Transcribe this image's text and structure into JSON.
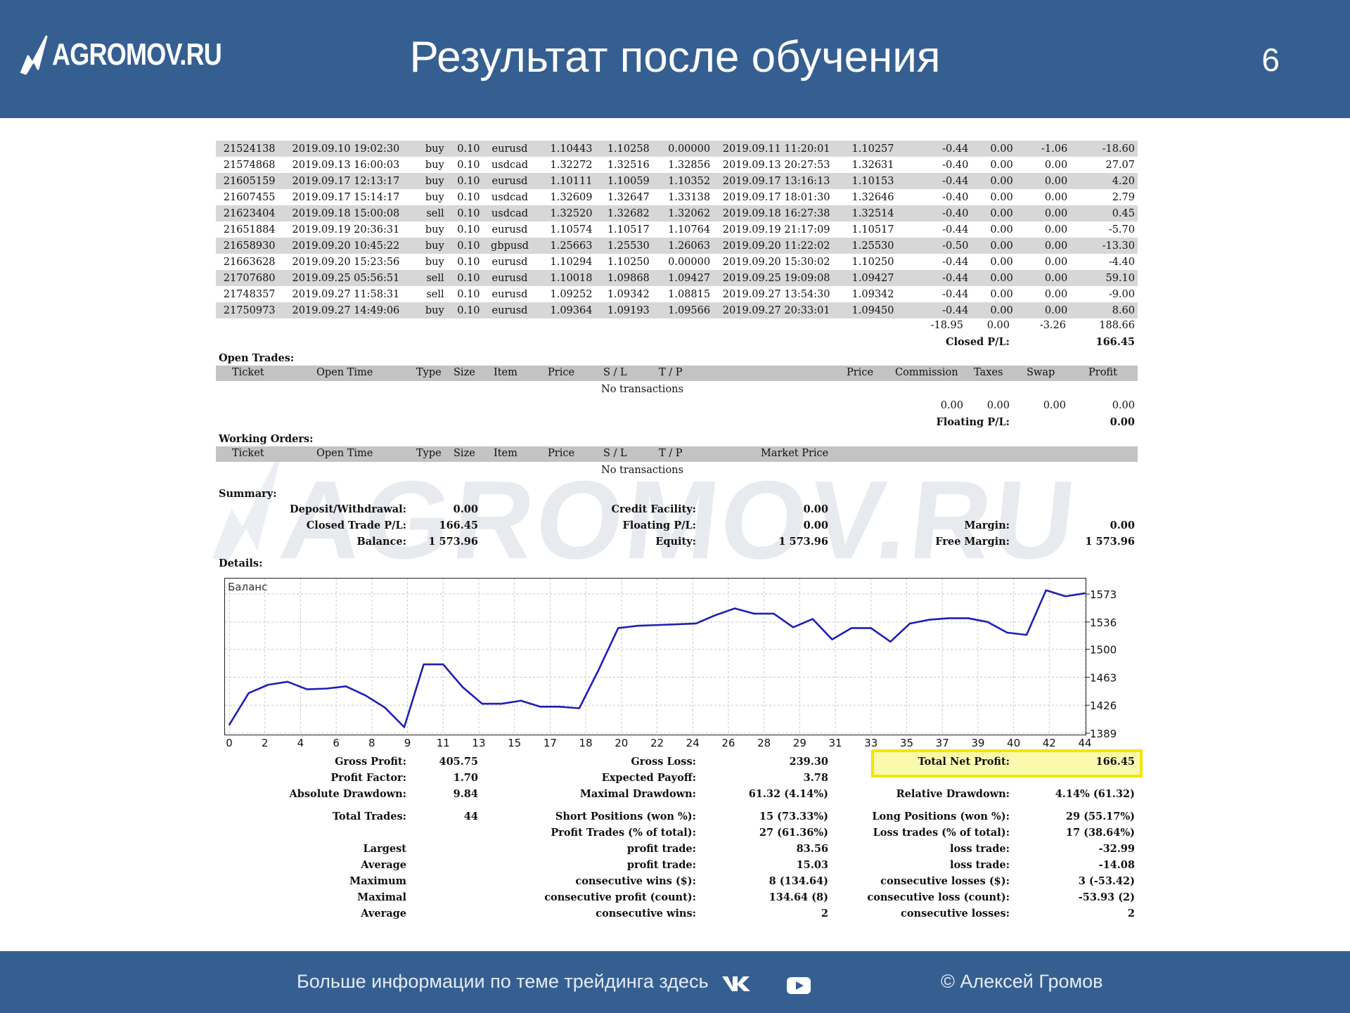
{
  "header": {
    "logo_text": "AGROMOV.RU",
    "title": "Результат после обучения",
    "page_number": "6"
  },
  "trades": [
    [
      "21524138",
      "2019.09.10 19:02:30",
      "buy",
      "0.10",
      "eurusd",
      "1.10443",
      "1.10258",
      "0.00000",
      "2019.09.11 11:20:01",
      "1.10257",
      "-0.44",
      "0.00",
      "-1.06",
      "-18.60"
    ],
    [
      "21574868",
      "2019.09.13 16:00:03",
      "buy",
      "0.10",
      "usdcad",
      "1.32272",
      "1.32516",
      "1.32856",
      "2019.09.13 20:27:53",
      "1.32631",
      "-0.40",
      "0.00",
      "0.00",
      "27.07"
    ],
    [
      "21605159",
      "2019.09.17 12:13:17",
      "buy",
      "0.10",
      "eurusd",
      "1.10111",
      "1.10059",
      "1.10352",
      "2019.09.17 13:16:13",
      "1.10153",
      "-0.44",
      "0.00",
      "0.00",
      "4.20"
    ],
    [
      "21607455",
      "2019.09.17 15:14:17",
      "buy",
      "0.10",
      "usdcad",
      "1.32609",
      "1.32647",
      "1.33138",
      "2019.09.17 18:01:30",
      "1.32646",
      "-0.40",
      "0.00",
      "0.00",
      "2.79"
    ],
    [
      "21623404",
      "2019.09.18 15:00:08",
      "sell",
      "0.10",
      "usdcad",
      "1.32520",
      "1.32682",
      "1.32062",
      "2019.09.18 16:27:38",
      "1.32514",
      "-0.40",
      "0.00",
      "0.00",
      "0.45"
    ],
    [
      "21651884",
      "2019.09.19 20:36:31",
      "buy",
      "0.10",
      "eurusd",
      "1.10574",
      "1.10517",
      "1.10764",
      "2019.09.19 21:17:09",
      "1.10517",
      "-0.44",
      "0.00",
      "0.00",
      "-5.70"
    ],
    [
      "21658930",
      "2019.09.20 10:45:22",
      "buy",
      "0.10",
      "gbpusd",
      "1.25663",
      "1.25530",
      "1.26063",
      "2019.09.20 11:22:02",
      "1.25530",
      "-0.50",
      "0.00",
      "0.00",
      "-13.30"
    ],
    [
      "21663628",
      "2019.09.20 15:23:56",
      "buy",
      "0.10",
      "eurusd",
      "1.10294",
      "1.10250",
      "0.00000",
      "2019.09.20 15:30:02",
      "1.10250",
      "-0.44",
      "0.00",
      "0.00",
      "-4.40"
    ],
    [
      "21707680",
      "2019.09.25 05:56:51",
      "sell",
      "0.10",
      "eurusd",
      "1.10018",
      "1.09868",
      "1.09427",
      "2019.09.25 19:09:08",
      "1.09427",
      "-0.44",
      "0.00",
      "0.00",
      "59.10"
    ],
    [
      "21748357",
      "2019.09.27 11:58:31",
      "sell",
      "0.10",
      "eurusd",
      "1.09252",
      "1.09342",
      "1.08815",
      "2019.09.27 13:54:30",
      "1.09342",
      "-0.44",
      "0.00",
      "0.00",
      "-9.00"
    ],
    [
      "21750973",
      "2019.09.27 14:49:06",
      "buy",
      "0.10",
      "eurusd",
      "1.09364",
      "1.09193",
      "1.09566",
      "2019.09.27 20:33:01",
      "1.09450",
      "-0.44",
      "0.00",
      "0.00",
      "8.60"
    ]
  ],
  "trade_totals": {
    "commission": "-18.95",
    "taxes": "0.00",
    "swap": "-3.26",
    "profit": "188.66",
    "closed_label": "Closed P/L:",
    "closed_value": "166.45"
  },
  "open_trades": {
    "title": "Open Trades:",
    "headers": [
      "Ticket",
      "Open Time",
      "Type",
      "Size",
      "Item",
      "Price",
      "S / L",
      "T / P",
      "Price",
      "Commission",
      "Taxes",
      "Swap",
      "Profit"
    ],
    "empty": "No transactions",
    "totals": [
      "0.00",
      "0.00",
      "0.00",
      "0.00"
    ],
    "floating_label": "Floating P/L:",
    "floating_value": "0.00"
  },
  "working_orders": {
    "title": "Working Orders:",
    "headers": [
      "Ticket",
      "Open Time",
      "Type",
      "Size",
      "Item",
      "Price",
      "S / L",
      "T / P",
      "Market Price"
    ],
    "empty": "No transactions"
  },
  "summary": {
    "title": "Summary:",
    "deposit_label": "Deposit/Withdrawal:",
    "deposit": "0.00",
    "credit_label": "Credit Facility:",
    "credit": "0.00",
    "closed_label": "Closed Trade P/L:",
    "closed": "166.45",
    "floating_label": "Floating P/L:",
    "floating": "0.00",
    "margin_label": "Margin:",
    "margin": "0.00",
    "balance_label": "Balance:",
    "balance": "1 573.96",
    "equity_label": "Equity:",
    "equity": "1 573.96",
    "free_margin_label": "Free Margin:",
    "free_margin": "1 573.96"
  },
  "details_title": "Details:",
  "watermark": "AGROMOV.RU",
  "chart_data": {
    "type": "line",
    "title": "Баланс",
    "series": [
      {
        "values": [
          1400,
          1442,
          1453,
          1457,
          1447,
          1448,
          1451,
          1439,
          1423,
          1397,
          1480,
          1480,
          1450,
          1428,
          1428,
          1432,
          1424,
          1424,
          1422,
          1473,
          1528,
          1531,
          1532,
          1533,
          1534,
          1545,
          1554,
          1547,
          1547,
          1529,
          1540,
          1513,
          1528,
          1528,
          1510,
          1534,
          1539,
          1541,
          1541,
          1536,
          1522,
          1519,
          1578,
          1570,
          1574
        ]
      }
    ],
    "x": [
      0,
      1,
      2,
      3,
      4,
      5,
      6,
      7,
      8,
      9,
      10,
      11,
      12,
      13,
      14,
      15,
      16,
      17,
      18,
      19,
      20,
      21,
      22,
      23,
      24,
      25,
      26,
      27,
      28,
      29,
      30,
      31,
      32,
      33,
      34,
      35,
      36,
      37,
      38,
      39,
      40,
      41,
      42,
      43,
      44
    ],
    "x_ticks": [
      "0",
      "2",
      "4",
      "6",
      "8",
      "9",
      "11",
      "13",
      "15",
      "17",
      "18",
      "20",
      "22",
      "24",
      "26",
      "28",
      "29",
      "31",
      "33",
      "35",
      "37",
      "39",
      "40",
      "42",
      "44"
    ],
    "y_ticks": [
      "1573",
      "1536",
      "1500",
      "1463",
      "1426",
      "1389"
    ],
    "ylim": [
      1389,
      1573
    ],
    "grid": true
  },
  "stats": {
    "gross_profit_label": "Gross Profit:",
    "gross_profit": "405.75",
    "gross_loss_label": "Gross Loss:",
    "gross_loss": "239.30",
    "total_net_label": "Total Net Profit:",
    "total_net": "166.45",
    "profit_factor_label": "Profit Factor:",
    "profit_factor": "1.70",
    "expected_payoff_label": "Expected Payoff:",
    "expected_payoff": "3.78",
    "abs_dd_label": "Absolute Drawdown:",
    "abs_dd": "9.84",
    "max_dd_label": "Maximal Drawdown:",
    "max_dd": "61.32 (4.14%)",
    "rel_dd_label": "Relative Drawdown:",
    "rel_dd": "4.14% (61.32)",
    "total_trades_label": "Total Trades:",
    "total_trades": "44",
    "short_label": "Short Positions (won %):",
    "short": "15 (73.33%)",
    "long_label": "Long Positions (won %):",
    "long": "29 (55.17%)",
    "profit_trades_label": "Profit Trades (% of total):",
    "profit_trades": "27 (61.36%)",
    "loss_trades_label": "Loss trades (% of total):",
    "loss_trades": "17 (38.64%)",
    "largest_label": "Largest",
    "largest_profit_label": "profit trade:",
    "largest_profit": "83.56",
    "largest_loss_label": "loss trade:",
    "largest_loss": "-32.99",
    "average_label": "Average",
    "average_profit_label": "profit trade:",
    "average_profit": "15.03",
    "average_loss_label": "loss trade:",
    "average_loss": "-14.08",
    "maximum_label": "Maximum",
    "max_cons_wins_label": "consecutive wins ($):",
    "max_cons_wins": "8 (134.64)",
    "max_cons_losses_label": "consecutive losses ($):",
    "max_cons_losses": "3 (-53.42)",
    "maximal_label": "Maximal",
    "maximal_cons_profit_label": "consecutive profit (count):",
    "maximal_cons_profit": "134.64 (8)",
    "maximal_cons_loss_label": "consecutive loss (count):",
    "maximal_cons_loss": "-53.93 (2)",
    "average2_label": "Average",
    "avg_cons_wins_label": "consecutive wins:",
    "avg_cons_wins": "2",
    "avg_cons_losses_label": "consecutive losses:",
    "avg_cons_losses": "2"
  },
  "footer": {
    "text": "Больше информации по теме трейдинга здесь",
    "vk_icon": "vk-icon",
    "yt_icon": "youtube-icon",
    "copyright": "© Алексей Громов"
  }
}
